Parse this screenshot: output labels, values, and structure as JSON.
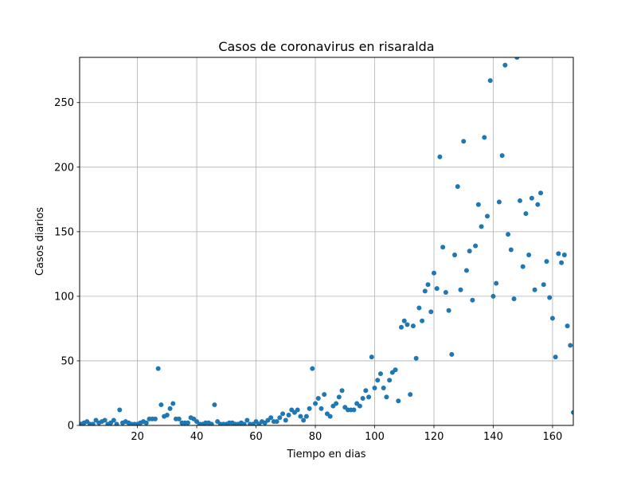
{
  "chart_data": {
    "type": "scatter",
    "title": "Casos de coronavirus en risaralda",
    "xlabel": "Tiempo en dias",
    "ylabel": "Casos diarios",
    "xlim": [
      0.5,
      167
    ],
    "ylim": [
      0,
      285
    ],
    "xticks": [
      20,
      40,
      60,
      80,
      100,
      120,
      140,
      160
    ],
    "yticks": [
      0,
      50,
      100,
      150,
      200,
      250
    ],
    "grid": true,
    "marker_color": "#1f77b4",
    "series": [
      {
        "name": "",
        "x": [
          1,
          2,
          3,
          4,
          5,
          6,
          7,
          8,
          9,
          10,
          11,
          12,
          13,
          14,
          15,
          16,
          17,
          18,
          19,
          20,
          21,
          22,
          23,
          24,
          25,
          26,
          27,
          28,
          29,
          30,
          31,
          32,
          33,
          34,
          35,
          36,
          37,
          38,
          39,
          40,
          41,
          42,
          43,
          44,
          45,
          46,
          47,
          48,
          49,
          50,
          51,
          52,
          53,
          54,
          55,
          56,
          57,
          58,
          59,
          60,
          61,
          62,
          63,
          64,
          65,
          66,
          67,
          68,
          69,
          70,
          71,
          72,
          73,
          74,
          75,
          76,
          77,
          78,
          79,
          80,
          81,
          82,
          83,
          84,
          85,
          86,
          87,
          88,
          89,
          90,
          91,
          92,
          93,
          94,
          95,
          96,
          97,
          98,
          99,
          100,
          101,
          102,
          103,
          104,
          105,
          106,
          107,
          108,
          109,
          110,
          111,
          112,
          113,
          114,
          115,
          116,
          117,
          118,
          119,
          120,
          121,
          122,
          123,
          124,
          125,
          126,
          127,
          128,
          129,
          130,
          131,
          132,
          133,
          134,
          135,
          136,
          137,
          138,
          139,
          140,
          141,
          142,
          143,
          144,
          145,
          146,
          147,
          148,
          149,
          150,
          151,
          152,
          153,
          154,
          155,
          156,
          157,
          158,
          159,
          160,
          161,
          162,
          163,
          164,
          165,
          166,
          167
        ],
        "y": [
          1,
          2,
          3,
          1,
          1,
          4,
          2,
          3,
          4,
          1,
          2,
          4,
          1,
          12,
          2,
          3,
          2,
          1,
          1,
          1,
          2,
          3,
          2,
          5,
          5,
          5,
          44,
          16,
          7,
          8,
          13,
          17,
          5,
          5,
          2,
          2,
          2,
          6,
          5,
          3,
          1,
          1,
          2,
          2,
          1,
          16,
          3,
          1,
          1,
          1,
          2,
          2,
          1,
          1,
          2,
          1,
          4,
          1,
          1,
          3,
          1,
          3,
          2,
          4,
          6,
          3,
          3,
          6,
          9,
          4,
          8,
          12,
          10,
          12,
          7,
          4,
          7,
          13,
          44,
          17,
          21,
          13,
          24,
          9,
          7,
          15,
          17,
          22,
          27,
          14,
          12,
          12,
          12,
          17,
          15,
          21,
          27,
          22,
          53,
          29,
          35,
          40,
          29,
          22,
          35,
          41,
          43,
          19,
          76,
          81,
          78,
          24,
          77,
          52,
          91,
          81,
          104,
          109,
          88,
          118,
          106,
          208,
          138,
          103,
          89,
          55,
          132,
          185,
          105,
          220,
          120,
          135,
          97,
          139,
          171,
          154,
          223,
          162,
          267,
          100,
          110,
          173,
          209,
          279,
          148,
          136,
          98,
          285,
          174,
          123,
          164,
          132,
          176,
          105,
          171,
          180,
          109,
          127,
          99,
          83,
          53,
          133,
          126,
          132,
          77,
          62,
          10
        ]
      }
    ]
  }
}
